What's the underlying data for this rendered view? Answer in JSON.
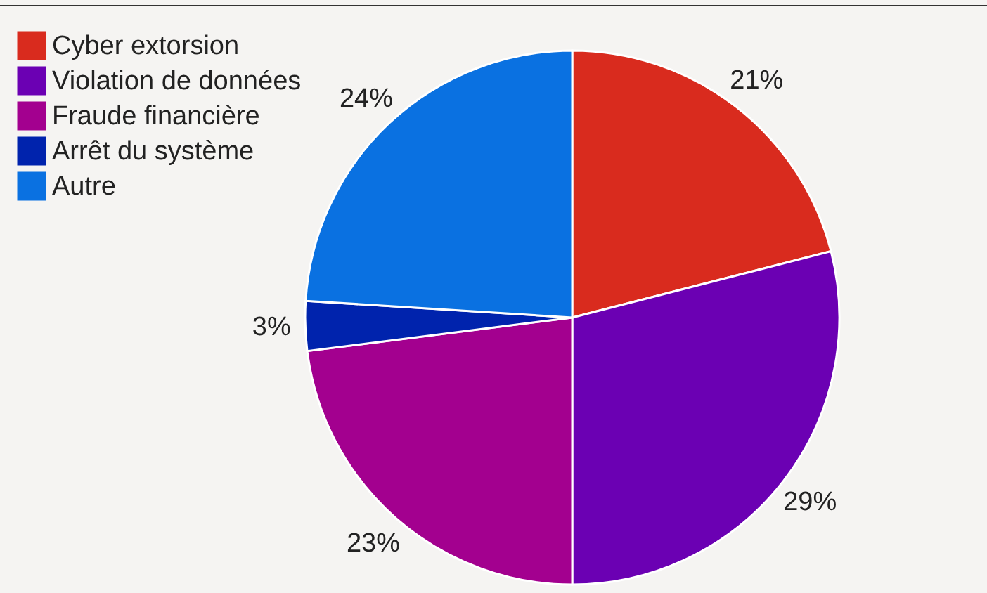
{
  "chart_data": {
    "type": "pie",
    "categories": [
      "Cyber extorsion",
      "Violation de données",
      "Fraude financière",
      "Arrêt du système",
      "Autre"
    ],
    "values": [
      21,
      29,
      23,
      3,
      24
    ],
    "colors": [
      "#d92b1e",
      "#6b00b3",
      "#a3008f",
      "#0023ad",
      "#0a71e1"
    ],
    "value_labels": [
      "21%",
      "29%",
      "23%",
      "3%",
      "24%"
    ],
    "legend": "top left"
  }
}
